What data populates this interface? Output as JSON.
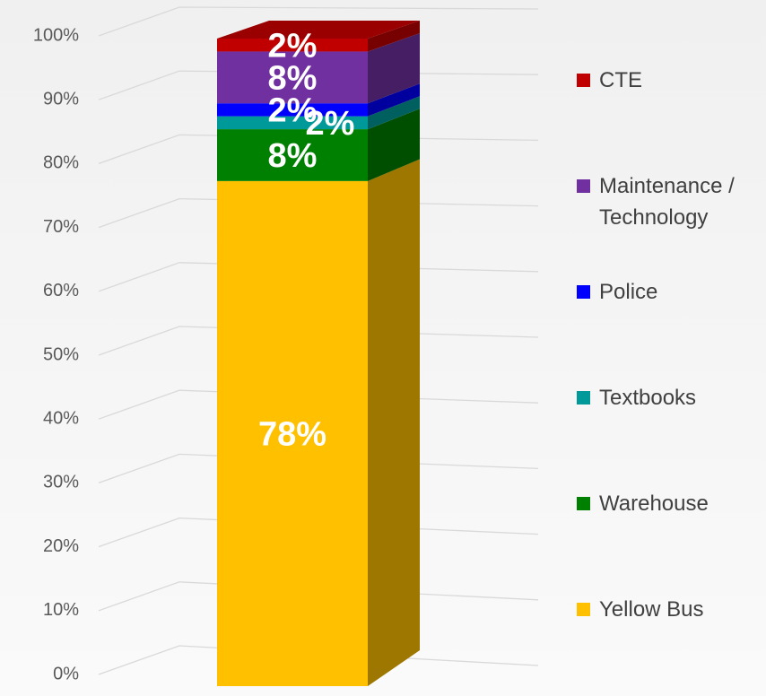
{
  "chart_data": {
    "type": "stacked-bar-3d",
    "categories": [
      null
    ],
    "ylim": [
      0,
      100
    ],
    "yticks": [
      {
        "value": 0,
        "label": "0%"
      },
      {
        "value": 10,
        "label": "10%"
      },
      {
        "value": 20,
        "label": "20%"
      },
      {
        "value": 30,
        "label": "30%"
      },
      {
        "value": 40,
        "label": "40%"
      },
      {
        "value": 50,
        "label": "50%"
      },
      {
        "value": 60,
        "label": "60%"
      },
      {
        "value": 70,
        "label": "70%"
      },
      {
        "value": 80,
        "label": "80%"
      },
      {
        "value": 90,
        "label": "90%"
      },
      {
        "value": 100,
        "label": "100%"
      }
    ],
    "grid": true,
    "legend": "right",
    "series": [
      {
        "name": "Yellow Bus",
        "color": "#FFC000",
        "values": [
          78
        ],
        "value_labels": [
          "78%"
        ]
      },
      {
        "name": "Warehouse",
        "color": "#008000",
        "values": [
          8
        ],
        "value_labels": [
          "8%"
        ]
      },
      {
        "name": "Textbooks",
        "color": "#009999",
        "values": [
          2
        ],
        "value_labels": [
          "2%"
        ]
      },
      {
        "name": "Police",
        "color": "#0000FF",
        "values": [
          2
        ],
        "value_labels": [
          "2%"
        ]
      },
      {
        "name": "Maintenance / Technology",
        "color": "#7030A0",
        "values": [
          8
        ],
        "value_labels": [
          "8%"
        ]
      },
      {
        "name": "CTE",
        "color": "#C00000",
        "values": [
          2
        ],
        "value_labels": [
          "2%"
        ]
      }
    ]
  }
}
